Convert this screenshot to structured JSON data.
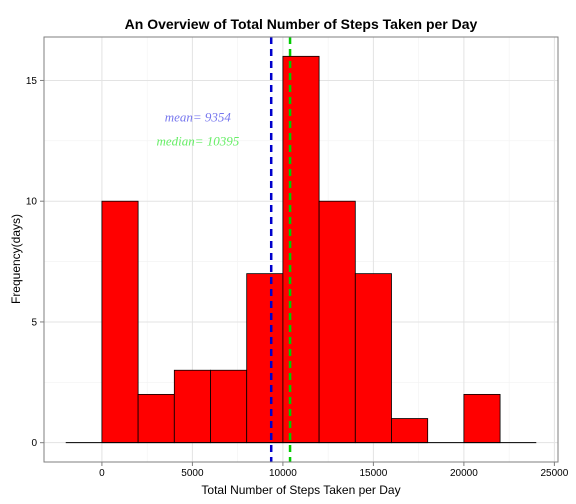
{
  "chart_data": {
    "type": "bar",
    "title": "An Overview of Total Number of Steps Taken per Day",
    "xlabel": "Total Number of Steps Taken per Day",
    "ylabel": "Frequency(days)",
    "bin_width": 2000,
    "bins": [
      {
        "x0": -2000,
        "x1": 0,
        "count": 0
      },
      {
        "x0": 0,
        "x1": 2000,
        "count": 10
      },
      {
        "x0": 2000,
        "x1": 4000,
        "count": 2
      },
      {
        "x0": 4000,
        "x1": 6000,
        "count": 3
      },
      {
        "x0": 6000,
        "x1": 8000,
        "count": 3
      },
      {
        "x0": 8000,
        "x1": 10000,
        "count": 7
      },
      {
        "x0": 10000,
        "x1": 12000,
        "count": 16
      },
      {
        "x0": 12000,
        "x1": 14000,
        "count": 10
      },
      {
        "x0": 14000,
        "x1": 16000,
        "count": 7
      },
      {
        "x0": 16000,
        "x1": 18000,
        "count": 1
      },
      {
        "x0": 18000,
        "x1": 20000,
        "count": 0
      },
      {
        "x0": 20000,
        "x1": 22000,
        "count": 2
      },
      {
        "x0": 22000,
        "x1": 24000,
        "count": 0
      }
    ],
    "xlim": [
      -3200,
      25200
    ],
    "ylim": [
      -0.8,
      16.8
    ],
    "x_ticks": [
      0,
      5000,
      10000,
      15000,
      20000,
      25000
    ],
    "x_tick_labels": [
      "0",
      "5000",
      "10000",
      "15000",
      "20000",
      "25000"
    ],
    "y_ticks": [
      0,
      5,
      10,
      15
    ],
    "y_tick_labels": [
      "0",
      "5",
      "10",
      "15"
    ],
    "vlines": [
      {
        "value": 9354,
        "color": "#0000cc",
        "style": "dashed"
      },
      {
        "value": 10395,
        "color": "#00cc00",
        "style": "dashed"
      }
    ],
    "annotations": [
      {
        "text": "mean= 9354",
        "x": 5300,
        "y": 13.3,
        "color": "#7777ee"
      },
      {
        "text": "median= 10395",
        "x": 5300,
        "y": 12.3,
        "color": "#66ee66"
      }
    ],
    "bar_color": "#ff0000",
    "bar_edge_color": "#000000",
    "grid": true,
    "legend": "none"
  }
}
